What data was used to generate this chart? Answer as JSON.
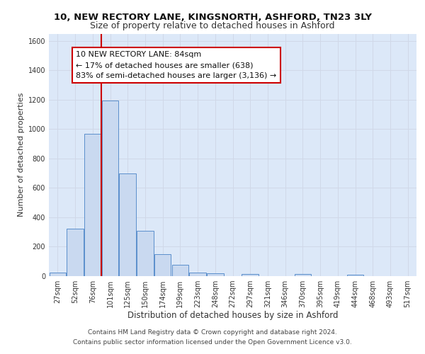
{
  "title": "10, NEW RECTORY LANE, KINGSNORTH, ASHFORD, TN23 3LY",
  "subtitle": "Size of property relative to detached houses in Ashford",
  "xlabel": "Distribution of detached houses by size in Ashford",
  "ylabel": "Number of detached properties",
  "bar_labels": [
    "27sqm",
    "52sqm",
    "76sqm",
    "101sqm",
    "125sqm",
    "150sqm",
    "174sqm",
    "199sqm",
    "223sqm",
    "248sqm",
    "272sqm",
    "297sqm",
    "321sqm",
    "346sqm",
    "370sqm",
    "395sqm",
    "419sqm",
    "444sqm",
    "468sqm",
    "493sqm",
    "517sqm"
  ],
  "bar_values": [
    25,
    325,
    970,
    1195,
    700,
    310,
    150,
    75,
    25,
    20,
    0,
    15,
    0,
    0,
    15,
    0,
    0,
    10,
    0,
    0,
    0
  ],
  "bar_color": "#c9d9f0",
  "bar_edge_color": "#5b8fcc",
  "vline_color": "#cc0000",
  "annotation_title": "10 NEW RECTORY LANE: 84sqm",
  "annotation_line1": "← 17% of detached houses are smaller (638)",
  "annotation_line2": "83% of semi-detached houses are larger (3,136) →",
  "annotation_box_color": "#ffffff",
  "annotation_box_edge": "#cc0000",
  "ylim": [
    0,
    1650
  ],
  "yticks": [
    0,
    200,
    400,
    600,
    800,
    1000,
    1200,
    1400,
    1600
  ],
  "grid_color": "#d0d8e8",
  "background_color": "#dce8f8",
  "footer_line1": "Contains HM Land Registry data © Crown copyright and database right 2024.",
  "footer_line2": "Contains public sector information licensed under the Open Government Licence v3.0.",
  "title_fontsize": 9.5,
  "subtitle_fontsize": 9,
  "xlabel_fontsize": 8.5,
  "ylabel_fontsize": 8,
  "tick_fontsize": 7,
  "annotation_fontsize": 8,
  "footer_fontsize": 6.5
}
